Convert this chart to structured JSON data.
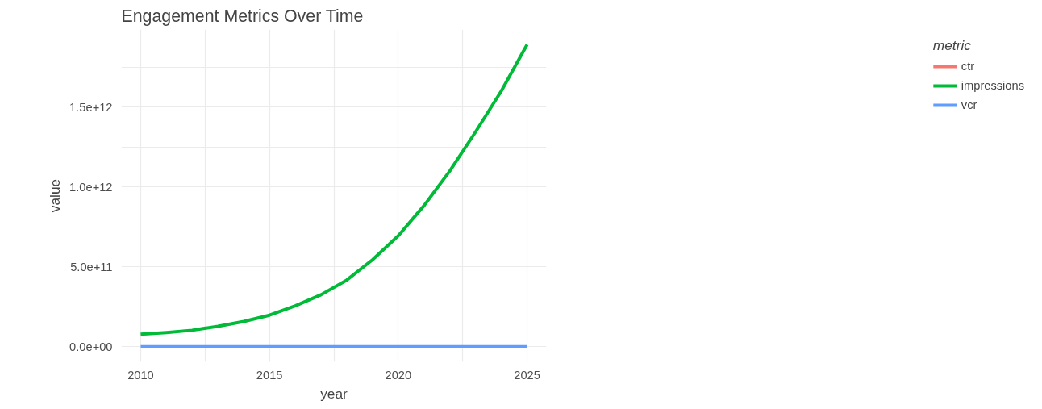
{
  "chart_data": {
    "type": "line",
    "title": "Engagement Metrics Over Time",
    "xlabel": "year",
    "ylabel": "value",
    "legend_title": "metric",
    "x": [
      2010,
      2011,
      2012,
      2013,
      2014,
      2015,
      2016,
      2017,
      2018,
      2019,
      2020,
      2021,
      2022,
      2023,
      2024,
      2025
    ],
    "series": [
      {
        "name": "ctr",
        "color": "#f8766d",
        "values": [
          null,
          null,
          null,
          null,
          null,
          null,
          null,
          null,
          null,
          null,
          null,
          null,
          null,
          null,
          null,
          null
        ]
      },
      {
        "name": "impressions",
        "color": "#00ba38",
        "values": [
          78000000000,
          89000000000,
          103000000000,
          128000000000,
          158000000000,
          197000000000,
          256000000000,
          325000000000,
          417000000000,
          544000000000,
          694000000000,
          883000000000,
          1100000000000,
          1344000000000,
          1600000000000,
          1890000000000
        ]
      },
      {
        "name": "vcr",
        "color": "#619cff",
        "values": [
          0,
          0,
          0,
          0,
          0,
          0,
          0,
          0,
          0,
          0,
          0,
          0,
          0,
          0,
          0,
          0
        ]
      }
    ],
    "xlim": [
      2009.25,
      2025.75
    ],
    "ylim": [
      -94500000000,
      1985000000000
    ],
    "xticks": [
      2010,
      {
        "value": 2012.5,
        "label": null
      },
      2015,
      {
        "value": 2017.5,
        "label": null
      },
      2020,
      {
        "value": 2022.5,
        "label": null
      },
      2025
    ],
    "yticks": [
      {
        "value": 0,
        "label": "0.0e+00"
      },
      {
        "value": 250000000000,
        "label": null
      },
      {
        "value": 500000000000,
        "label": "5.0e+11"
      },
      {
        "value": 750000000000,
        "label": null
      },
      {
        "value": 1000000000000,
        "label": "1.0e+12"
      },
      {
        "value": 1250000000000,
        "label": null
      },
      {
        "value": 1500000000000,
        "label": "1.5e+12"
      },
      {
        "value": 1750000000000,
        "label": null
      }
    ],
    "grid": true,
    "legend": "right",
    "line_style": "solid",
    "marker": "none"
  }
}
